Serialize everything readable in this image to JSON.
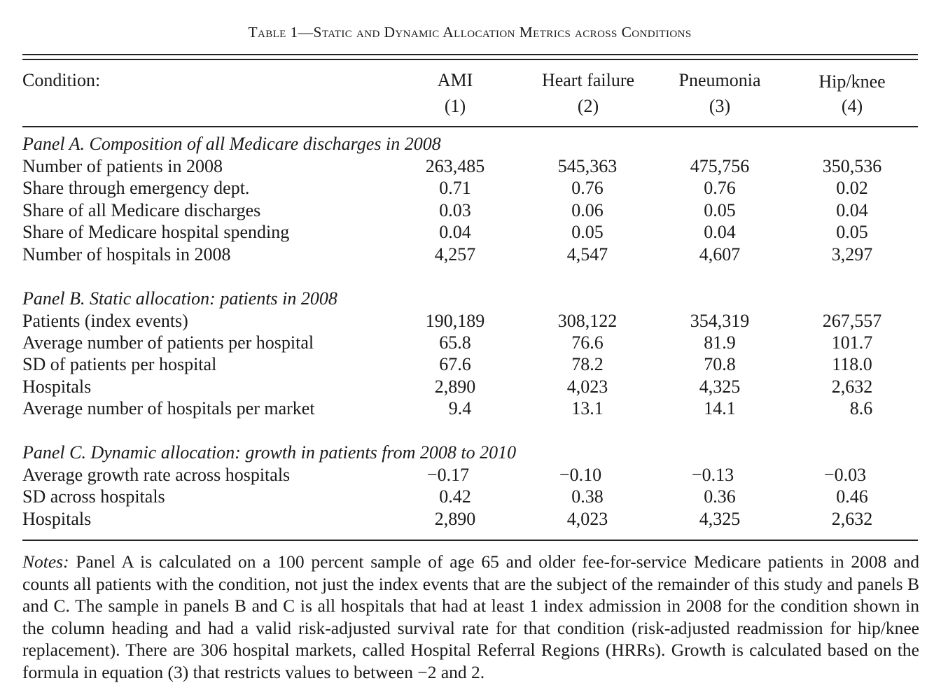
{
  "title": "Table 1—Static and Dynamic Allocation Metrics across Conditions",
  "header": {
    "condition_label": "Condition:",
    "columns": [
      {
        "name": "AMI",
        "number": "(1)"
      },
      {
        "name": "Heart failure",
        "number": "(2)"
      },
      {
        "name": "Pneumonia",
        "number": "(3)"
      },
      {
        "name": "Hip/knee",
        "number": "(4)"
      }
    ]
  },
  "panels": [
    {
      "title": "Panel A. Composition of all Medicare discharges in 2008",
      "rows": [
        {
          "label": "Number of patients in 2008",
          "values": [
            "263,485",
            "545,363",
            "475,756",
            "350,536"
          ]
        },
        {
          "label": "Share through emergency dept.",
          "values": [
            "0.71",
            "0.76",
            "0.76",
            "0.02"
          ]
        },
        {
          "label": "Share of all Medicare discharges",
          "values": [
            "0.03",
            "0.06",
            "0.05",
            "0.04"
          ]
        },
        {
          "label": "Share of Medicare hospital spending",
          "values": [
            "0.04",
            "0.05",
            "0.04",
            "0.05"
          ]
        },
        {
          "label": "Number of hospitals in 2008",
          "values": [
            "4,257",
            "4,547",
            "4,607",
            "3,297"
          ]
        }
      ]
    },
    {
      "title": "Panel B. Static allocation: patients in 2008",
      "rows": [
        {
          "label": "Patients (index events)",
          "values": [
            "190,189",
            "308,122",
            "354,319",
            "267,557"
          ]
        },
        {
          "label": "Average number of patients per hospital",
          "values": [
            "65.8",
            "76.6",
            "81.9",
            "101.7"
          ]
        },
        {
          "label": "SD of patients per hospital",
          "values": [
            "67.6",
            "78.2",
            "70.8",
            "118.0"
          ]
        },
        {
          "label": "Hospitals",
          "values": [
            "2,890",
            "4,023",
            "4,325",
            "2,632"
          ]
        },
        {
          "label": "Average number of hospitals per market",
          "values": [
            "9.4",
            "13.1",
            "14.1",
            "8.6"
          ]
        }
      ]
    },
    {
      "title": "Panel C. Dynamic allocation: growth in patients from 2008 to 2010",
      "rows": [
        {
          "label": "Average growth rate across hospitals",
          "values": [
            "−0.17",
            "−0.10",
            "−0.13",
            "−0.03"
          ]
        },
        {
          "label": "SD across hospitals",
          "values": [
            "0.42",
            "0.38",
            "0.36",
            "0.46"
          ]
        },
        {
          "label": "Hospitals",
          "values": [
            "2,890",
            "4,023",
            "4,325",
            "2,632"
          ]
        }
      ]
    }
  ],
  "notes": {
    "label": "Notes:",
    "text": "Panel A is calculated on a 100 percent sample of age 65 and older fee-for-service Medicare patients in 2008 and counts all patients with the condition, not just the index events that are the subject of the remainder of this study and panels B and C. The sample in panels B and C is all hospitals that had at least 1 index admission in 2008 for the condition shown in the column heading and had a valid risk-adjusted survival rate for that condition (risk-adjusted readmission for hip/knee replacement). There are 306 hospital markets, called Hospital Referral Regions (HRRs). Growth is calculated based on the formula in equation (3) that restricts values to between −2 and 2."
  }
}
